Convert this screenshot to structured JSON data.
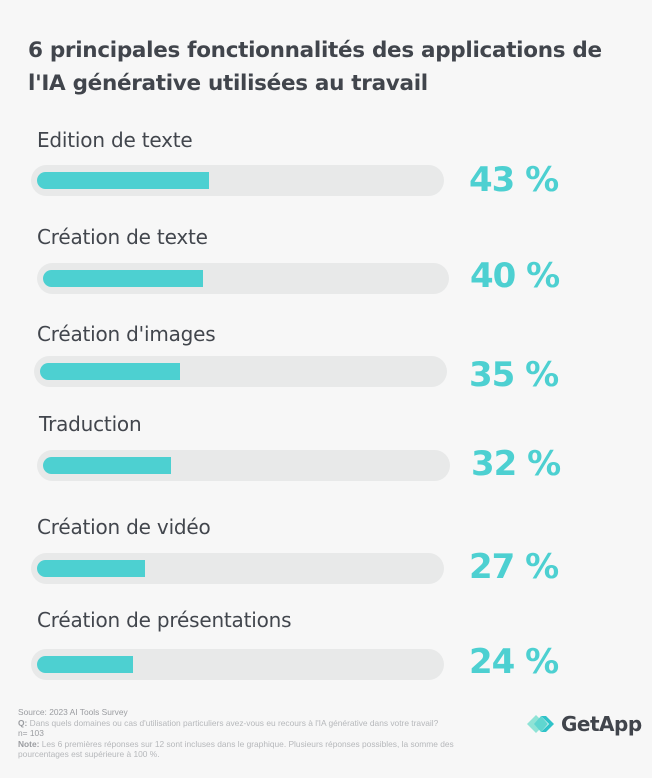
{
  "title": "6 principales fonctionnalités des applications de l'IA générative utilisées au travail",
  "items": [
    {
      "label": "Edition de texte",
      "value": 43,
      "value_label": "43 %"
    },
    {
      "label": "Création de texte",
      "value": 40,
      "value_label": "40 %"
    },
    {
      "label": "Création d'images",
      "value": 35,
      "value_label": "35 %"
    },
    {
      "label": "Traduction",
      "value": 32,
      "value_label": "32 %"
    },
    {
      "label": "Création de vidéo",
      "value": 27,
      "value_label": "27 %"
    },
    {
      "label": "Création de présentations",
      "value": 24,
      "value_label": "24 %"
    }
  ],
  "footer": {
    "source": "Source: 2023 AI Tools Survey",
    "q_label": "Q:",
    "question": "Dans quels domaines ou cas d'utilisation particuliers avez-vous eu recours à l'IA générative dans votre travail?",
    "n": "n= 103",
    "note_label": "Note:",
    "note": "Les 6 premières réponses sur 12 sont incluses dans le graphique. Plusieurs réponses possibles, la somme des pourcentages est supérieure à 100 %."
  },
  "logo": {
    "text": "GetApp"
  },
  "colors": {
    "accent": "#4dd0d1",
    "track": "#e8e9e9",
    "background": "#f7f7f7",
    "text": "#41454c"
  },
  "chart_data": {
    "type": "bar",
    "orientation": "horizontal",
    "title": "6 principales fonctionnalités des applications de l'IA générative utilisées au travail",
    "categories": [
      "Edition de texte",
      "Création de texte",
      "Création d'images",
      "Traduction",
      "Création de vidéo",
      "Création de présentations"
    ],
    "values": [
      43,
      40,
      35,
      32,
      27,
      24
    ],
    "unit": "%",
    "xlim": [
      0,
      100
    ],
    "grid": false,
    "legend": null,
    "xlabel": "",
    "ylabel": ""
  }
}
